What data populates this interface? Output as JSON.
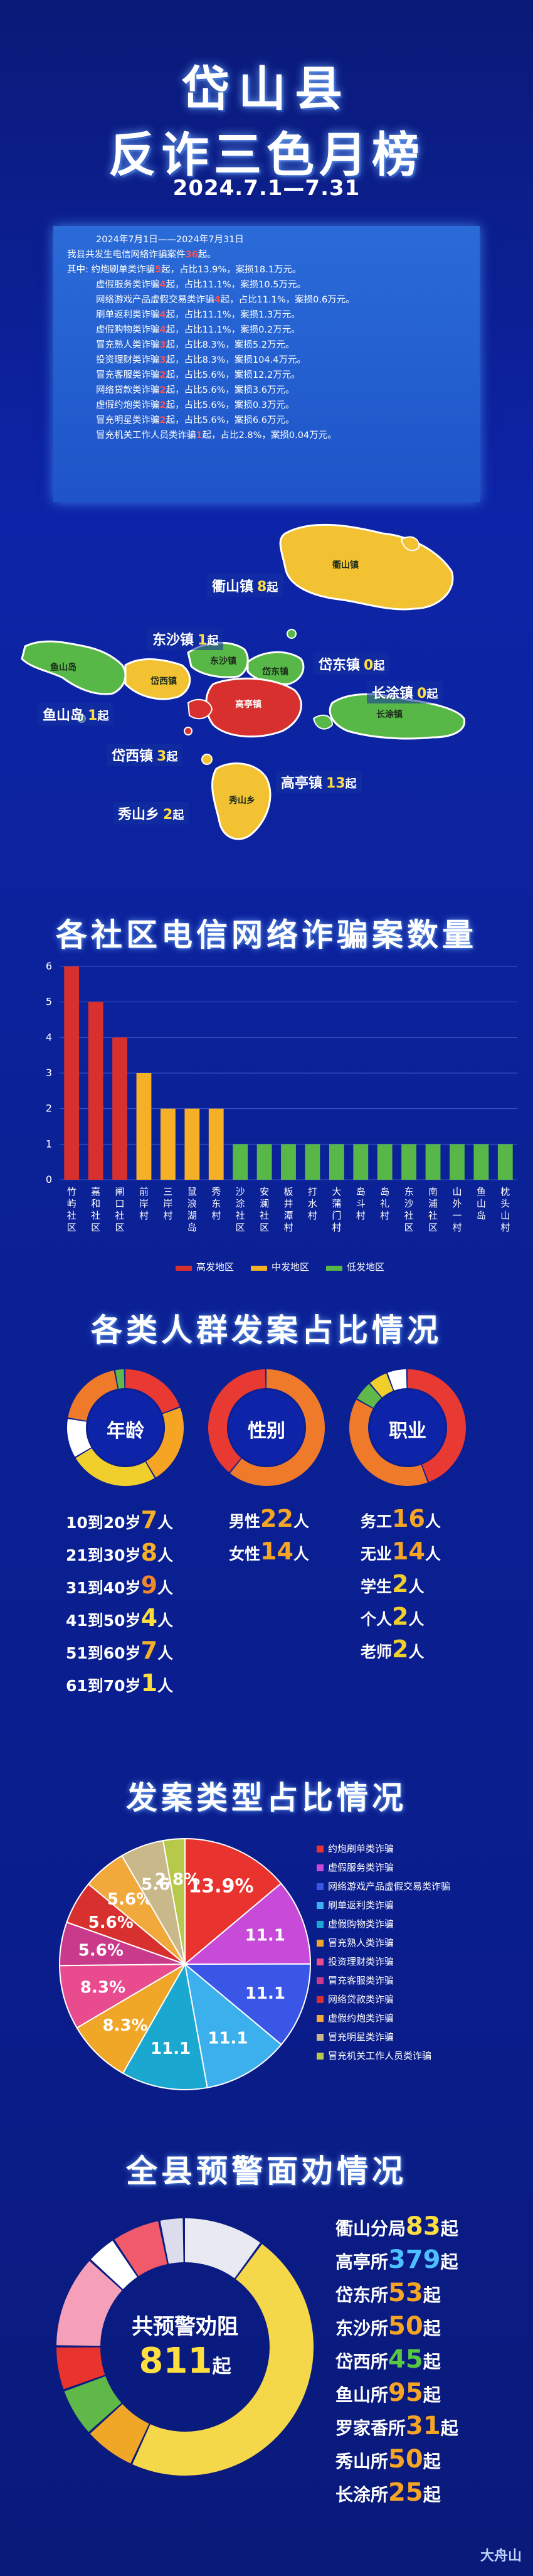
{
  "header": {
    "line1": "岱山县",
    "line2": "反诈三色月榜",
    "date_range": "2024.7.1—7.31"
  },
  "summary": {
    "lines": [
      {
        "text": "2024年7月1日——2024年7月31日",
        "indent": true
      },
      {
        "text": "我县共发生电信网络诈骗案件36起。",
        "hl": "36"
      },
      {
        "text": "其中: 约炮刷单类诈骗5起，占比13.9%，案损18.1万元。"
      },
      {
        "text": "虚假服务类诈骗4起，占比11.1%，案损10.5万元。",
        "indent": true
      },
      {
        "text": "网络游戏产品虚假交易类诈骗4起，占比11.1%，案损0.6万元。",
        "indent": true
      },
      {
        "text": "刷单返利类诈骗4起，占比11.1%，案损1.3万元。",
        "indent": true
      },
      {
        "text": "虚假购物类诈骗4起，占比11.1%，案损0.2万元。",
        "indent": true
      },
      {
        "text": "冒充熟人类诈骗3起，占比8.3%，案损5.2万元。",
        "indent": true
      },
      {
        "text": "投资理财类诈骗3起，占比8.3%，案损104.4万元。",
        "indent": true
      },
      {
        "text": "冒充客服类诈骗2起，占比5.6%，案损12.2万元。",
        "indent": true
      },
      {
        "text": "网络贷款类诈骗2起，占比5.6%，案损3.6万元。",
        "indent": true
      },
      {
        "text": "虚假约炮类诈骗2起，占比5.6%，案损0.3万元。",
        "indent": true
      },
      {
        "text": "冒充明星类诈骗2起，占比5.6%，案损6.6万元。",
        "indent": true
      },
      {
        "text": "冒充机关工作人员类诈骗1起，占比2.8%，案损0.04万元。",
        "indent": true
      }
    ]
  },
  "map": {
    "towns": [
      {
        "label": "衢山镇",
        "count": "8",
        "unit": "起"
      },
      {
        "label": "东沙镇",
        "count": "1",
        "unit": "起"
      },
      {
        "label": "岱东镇",
        "count": "0",
        "unit": "起"
      },
      {
        "label": "鱼山岛",
        "count": "1",
        "unit": "起"
      },
      {
        "label": "长涂镇",
        "count": "0",
        "unit": "起"
      },
      {
        "label": "岱西镇",
        "count": "3",
        "unit": "起"
      },
      {
        "label": "高亭镇",
        "count": "13",
        "unit": "起"
      },
      {
        "label": "秀山乡",
        "count": "2",
        "unit": "起"
      }
    ],
    "area_names": [
      "衢山镇",
      "岱西镇",
      "东沙镇",
      "岱东镇",
      "高亭镇",
      "长涂镇",
      "秀山乡",
      "鱼山岛"
    ]
  },
  "sections": {
    "community": "各社区电信网络诈骗案数量",
    "crowd": "各类人群发案占比情况",
    "types": "发案类型占比情况",
    "warning": "全县预警面劝情况"
  },
  "chart_data": [
    {
      "type": "bar",
      "categories": [
        "竹屿社区",
        "嘉和社区",
        "闸口社区",
        "前岸村",
        "三岸村",
        "鼠浪湖岛",
        "秀东村",
        "沙涂社区",
        "安澜社区",
        "板井潭村",
        "打水村",
        "大蒲门村",
        "岛斗村",
        "岛礼村",
        "东沙社区",
        "南浦社区",
        "山外一村",
        "鱼山岛",
        "枕头山村"
      ],
      "values": [
        6,
        5,
        4,
        3,
        2,
        2,
        2,
        1,
        1,
        1,
        1,
        1,
        1,
        1,
        1,
        1,
        1,
        1,
        1
      ],
      "levels": [
        "high",
        "high",
        "high",
        "mid",
        "mid",
        "mid",
        "mid",
        "low",
        "low",
        "low",
        "low",
        "low",
        "low",
        "low",
        "low",
        "low",
        "low",
        "low",
        "low"
      ],
      "ylim": [
        0,
        6
      ],
      "yticks": [
        "0",
        "1",
        "2",
        "3",
        "4",
        "5",
        "6"
      ],
      "legend": [
        {
          "label": "高发地区",
          "color": "#d8302e"
        },
        {
          "label": "中发地区",
          "color": "#f5b027"
        },
        {
          "label": "低发地区",
          "color": "#58b847"
        }
      ],
      "legend_position": "bottom-center"
    },
    {
      "type": "pie",
      "title": "年龄",
      "labels": [
        "10到20岁",
        "21到30岁",
        "31到40岁",
        "41到50岁",
        "51到60岁",
        "61到70岁"
      ],
      "values": [
        7,
        8,
        9,
        4,
        7,
        1
      ],
      "units": "人",
      "colors": [
        "#e83a33",
        "#f5a523",
        "#f0cf2c",
        "#ffffff",
        "#ef7b2a",
        "#5fb848"
      ],
      "num_colors": [
        "#f5b027",
        "#f5b027",
        "#f0882e",
        "#ffdf40",
        "#f5b027",
        "#ffdf40"
      ]
    },
    {
      "type": "pie",
      "title": "性别",
      "labels": [
        "男性",
        "女性"
      ],
      "values": [
        22,
        14
      ],
      "units": "人",
      "colors": [
        "#ef7b2a",
        "#e83a33"
      ],
      "num_colors": [
        "#f5a523",
        "#f5a523"
      ]
    },
    {
      "type": "pie",
      "title": "职业",
      "labels": [
        "务工",
        "无业",
        "学生",
        "个人",
        "老师"
      ],
      "values": [
        16,
        14,
        2,
        2,
        2
      ],
      "units": "人",
      "colors": [
        "#e83a33",
        "#ef7b2a",
        "#5fb848",
        "#f0cf2c",
        "#ffffff"
      ],
      "num_colors": [
        "#f5a523",
        "#f5a523",
        "#f0cf2c",
        "#f0cf2c",
        "#f0cf2c"
      ]
    },
    {
      "type": "pie",
      "labels": [
        "约炮刷单类诈骗",
        "虚假服务类诈骗",
        "网络游戏产品虚假交易类诈骗",
        "刷单返利类诈骗",
        "虚假购物类诈骗",
        "冒充熟人类诈骗",
        "投资理财类诈骗",
        "冒充客服类诈骗",
        "网络贷款类诈骗",
        "虚假约炮类诈骗",
        "冒充明星类诈骗",
        "冒充机关工作人员类诈骗"
      ],
      "values": [
        13.9,
        11.1,
        11.1,
        11.1,
        11.1,
        8.3,
        8.3,
        5.6,
        5.6,
        5.6,
        5.6,
        2.8
      ],
      "value_labels": [
        "13.9%",
        "11.1",
        "11.1",
        "11.1",
        "11.1",
        "8.3%",
        "8.3%",
        "5.6%",
        "5.6%",
        "5.6%",
        "5.6",
        "2.8%"
      ],
      "colors": [
        "#e8332e",
        "#c84ad8",
        "#3a56e6",
        "#3bb0ec",
        "#1aa8d0",
        "#f0a626",
        "#e94b8f",
        "#c93b8a",
        "#d8302e",
        "#f2a93b",
        "#c9b98a",
        "#b7c94a"
      ],
      "legend_position": "right"
    },
    {
      "type": "pie",
      "center_title": "共预警劝阻",
      "center_value": "811",
      "center_unit": "起",
      "labels": [
        "衢山分局",
        "高亭所",
        "岱东所",
        "东沙所",
        "岱西所",
        "鱼山所",
        "罗家香所",
        "秀山所",
        "长涂所"
      ],
      "values": [
        83,
        379,
        53,
        50,
        45,
        95,
        31,
        50,
        25
      ],
      "units": "起",
      "colors": [
        "#e9e9f2",
        "#f5d74a",
        "#f0a626",
        "#5fb848",
        "#e8332e",
        "#f5a0b8",
        "#ffffff",
        "#f05a6a",
        "#dcdcec"
      ],
      "num_colors": [
        "#ffdf40",
        "#4dc0ff",
        "#f5a523",
        "#f5a523",
        "#58c840",
        "#f5a523",
        "#f5a523",
        "#f5a523",
        "#f5a523"
      ]
    }
  ],
  "footer": {
    "logo": "大舟山"
  }
}
